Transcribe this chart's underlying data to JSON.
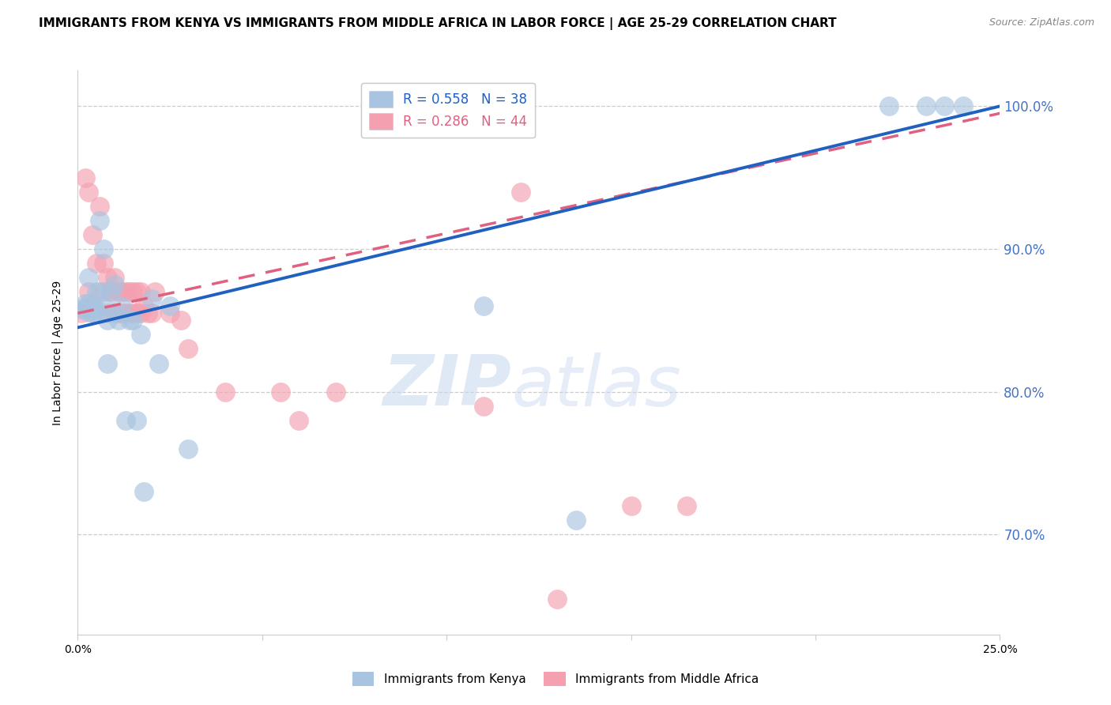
{
  "title": "IMMIGRANTS FROM KENYA VS IMMIGRANTS FROM MIDDLE AFRICA IN LABOR FORCE | AGE 25-29 CORRELATION CHART",
  "source": "Source: ZipAtlas.com",
  "xlabel": "",
  "ylabel": "In Labor Force | Age 25-29",
  "xlim": [
    0.0,
    0.25
  ],
  "ylim": [
    0.63,
    1.025
  ],
  "yticks": [
    0.7,
    0.8,
    0.9,
    1.0
  ],
  "ytick_labels": [
    "70.0%",
    "80.0%",
    "90.0%",
    "100.0%"
  ],
  "xticks": [
    0.0,
    0.05,
    0.1,
    0.15,
    0.2,
    0.25
  ],
  "xtick_labels": [
    "0.0%",
    "",
    "",
    "",
    "",
    "25.0%"
  ],
  "kenya_R": 0.558,
  "kenya_N": 38,
  "middle_africa_R": 0.286,
  "middle_africa_N": 44,
  "kenya_color": "#a8c4e0",
  "middle_africa_color": "#f4a0b0",
  "kenya_line_color": "#2060c0",
  "middle_africa_line_color": "#e06080",
  "kenya_x": [
    0.001,
    0.002,
    0.002,
    0.003,
    0.003,
    0.003,
    0.004,
    0.004,
    0.005,
    0.005,
    0.005,
    0.006,
    0.006,
    0.007,
    0.007,
    0.008,
    0.008,
    0.009,
    0.01,
    0.01,
    0.011,
    0.012,
    0.013,
    0.014,
    0.015,
    0.016,
    0.017,
    0.018,
    0.02,
    0.022,
    0.025,
    0.03,
    0.11,
    0.135,
    0.22,
    0.23,
    0.235,
    0.24
  ],
  "kenya_y": [
    0.858,
    0.862,
    0.858,
    0.88,
    0.862,
    0.856,
    0.86,
    0.855,
    0.87,
    0.858,
    0.855,
    0.92,
    0.87,
    0.9,
    0.86,
    0.82,
    0.85,
    0.87,
    0.875,
    0.855,
    0.85,
    0.86,
    0.78,
    0.85,
    0.85,
    0.78,
    0.84,
    0.73,
    0.865,
    0.82,
    0.86,
    0.76,
    0.86,
    0.71,
    1.0,
    1.0,
    1.0,
    1.0
  ],
  "middle_africa_x": [
    0.001,
    0.002,
    0.003,
    0.003,
    0.004,
    0.005,
    0.006,
    0.007,
    0.007,
    0.008,
    0.008,
    0.009,
    0.01,
    0.01,
    0.011,
    0.011,
    0.012,
    0.012,
    0.013,
    0.013,
    0.014,
    0.014,
    0.015,
    0.015,
    0.016,
    0.016,
    0.017,
    0.017,
    0.018,
    0.019,
    0.02,
    0.021,
    0.025,
    0.028,
    0.03,
    0.04,
    0.055,
    0.06,
    0.07,
    0.11,
    0.13,
    0.15,
    0.165,
    0.12
  ],
  "middle_africa_y": [
    0.855,
    0.95,
    0.94,
    0.87,
    0.91,
    0.89,
    0.93,
    0.89,
    0.87,
    0.88,
    0.855,
    0.87,
    0.88,
    0.855,
    0.87,
    0.855,
    0.87,
    0.855,
    0.87,
    0.855,
    0.87,
    0.855,
    0.87,
    0.855,
    0.855,
    0.87,
    0.855,
    0.87,
    0.86,
    0.855,
    0.855,
    0.87,
    0.855,
    0.85,
    0.83,
    0.8,
    0.8,
    0.78,
    0.8,
    0.79,
    0.655,
    0.72,
    0.72,
    0.94
  ],
  "kenya_line_x0": 0.0,
  "kenya_line_y0": 0.845,
  "kenya_line_x1": 0.25,
  "kenya_line_y1": 1.0,
  "middle_africa_line_x0": 0.0,
  "middle_africa_line_y0": 0.855,
  "middle_africa_line_x1": 0.25,
  "middle_africa_line_y1": 0.995,
  "watermark_zip": "ZIP",
  "watermark_atlas": "atlas",
  "background_color": "#ffffff",
  "title_fontsize": 11,
  "axis_label_fontsize": 10,
  "tick_fontsize": 10,
  "legend_fontsize": 12,
  "source_fontsize": 9
}
